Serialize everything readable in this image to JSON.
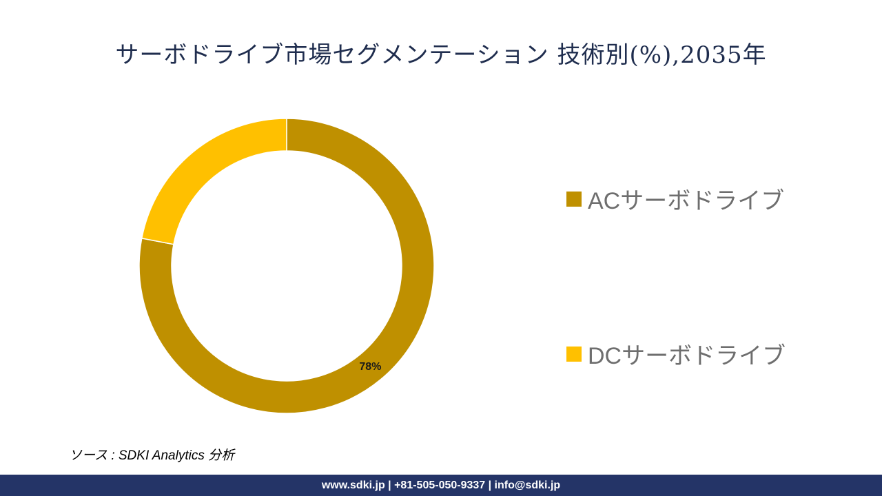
{
  "title": "サーボドライブ市場セグメンテーション 技術別(%),2035年",
  "chart_data": {
    "type": "pie",
    "variant": "donut",
    "categories": [
      "ACサーボドライブ",
      "DCサーボドライブ"
    ],
    "values": [
      78,
      22
    ],
    "data_labels": [
      "78%"
    ],
    "colors": [
      "#bf9000",
      "#ffc000"
    ],
    "legend_position": "right"
  },
  "source": "ソース : SDKI Analytics 分析",
  "footer": "www.sdki.jp | +81-505-050-9337 | info@sdki.jp"
}
